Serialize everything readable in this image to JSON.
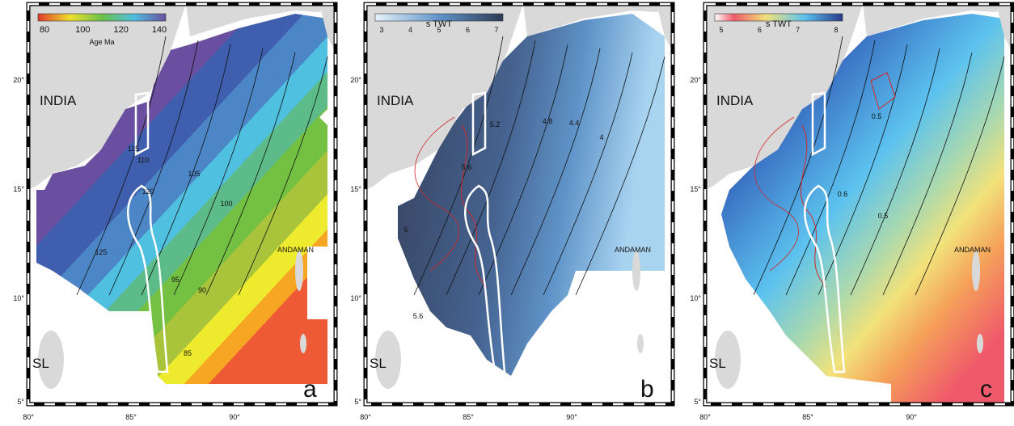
{
  "panels": [
    {
      "letter": "a",
      "colorbar": {
        "ticks": [
          "80",
          "100",
          "120",
          "140"
        ],
        "label": "Age Ma"
      },
      "places": [
        "INDIA",
        "ANDAMAN",
        "SL"
      ],
      "contour_labels": [
        "115",
        "110",
        "105",
        "100",
        "95",
        "90",
        "85",
        "120",
        "125"
      ],
      "x_labels": [
        "80°",
        "85°",
        "90°"
      ],
      "y_labels": [
        "5°",
        "10°",
        "15°",
        "20°"
      ]
    },
    {
      "letter": "b",
      "colorbar": {
        "ticks": [
          "3",
          "4",
          "5",
          "6",
          "7"
        ],
        "label": "s TWT"
      },
      "places": [
        "INDIA",
        "ANDAMAN",
        "SL"
      ],
      "contour_labels": [
        "5.2",
        "4.8",
        "4.4",
        "4",
        "5.6",
        "6",
        "5.6"
      ],
      "x_labels": [
        "80°",
        "85°",
        "90°"
      ],
      "y_labels": [
        "5°",
        "10°",
        "15°",
        "20°"
      ]
    },
    {
      "letter": "c",
      "colorbar": {
        "ticks": [
          "5",
          "6",
          "7",
          "8"
        ],
        "label": "s TWT"
      },
      "places": [
        "INDIA",
        "ANDAMAN",
        "SL"
      ],
      "contour_labels": [
        "0.5",
        "0.6",
        "0.5"
      ],
      "x_labels": [
        "80°",
        "85°",
        "90°"
      ],
      "y_labels": [
        "5°",
        "10°",
        "15°",
        "20°"
      ]
    }
  ]
}
